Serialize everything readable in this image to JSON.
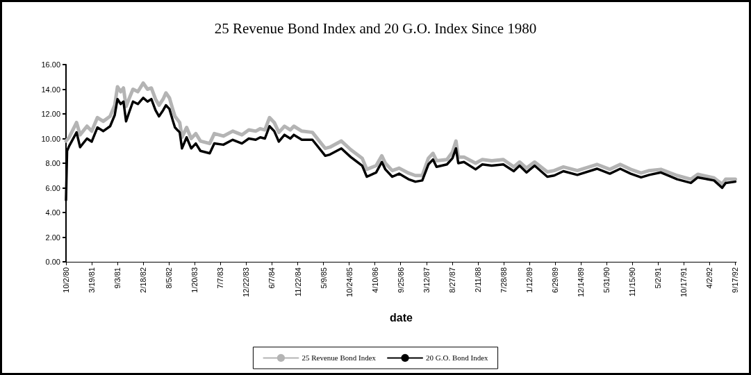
{
  "chart_data": {
    "type": "line",
    "title": "25 Revenue Bond Index and 20 G.O. Index Since 1980",
    "xlabel": "date",
    "xlim": [
      "1980-10-02",
      "1992-09-24"
    ],
    "xticks": [
      {
        "value": "1980-10-02",
        "label": "10/2/80"
      },
      {
        "value": "1981-03-19",
        "label": "3/19/81"
      },
      {
        "value": "1981-09-03",
        "label": "9/3/81"
      },
      {
        "value": "1982-02-18",
        "label": "2/18/82"
      },
      {
        "value": "1982-08-05",
        "label": "8/5/82"
      },
      {
        "value": "1983-01-20",
        "label": "1/20/83"
      },
      {
        "value": "1983-07-07",
        "label": "7/7/83"
      },
      {
        "value": "1983-12-22",
        "label": "12/22/83"
      },
      {
        "value": "1984-06-07",
        "label": "6/7/84"
      },
      {
        "value": "1984-11-22",
        "label": "11/22/84"
      },
      {
        "value": "1985-05-09",
        "label": "5/9/85"
      },
      {
        "value": "1985-10-24",
        "label": "10/24/85"
      },
      {
        "value": "1986-04-10",
        "label": "4/10/86"
      },
      {
        "value": "1986-09-25",
        "label": "9/25/86"
      },
      {
        "value": "1987-03-12",
        "label": "3/12/87"
      },
      {
        "value": "1987-08-27",
        "label": "8/27/87"
      },
      {
        "value": "1988-02-11",
        "label": "2/11/88"
      },
      {
        "value": "1988-07-28",
        "label": "7/28/88"
      },
      {
        "value": "1989-01-12",
        "label": "1/12/89"
      },
      {
        "value": "1989-06-29",
        "label": "6/29/89"
      },
      {
        "value": "1989-12-14",
        "label": "12/14/89"
      },
      {
        "value": "1990-05-31",
        "label": "5/31/90"
      },
      {
        "value": "1990-11-15",
        "label": "11/15/90"
      },
      {
        "value": "1991-05-02",
        "label": "5/2/91"
      },
      {
        "value": "1991-10-17",
        "label": "10/17/91"
      },
      {
        "value": "1992-04-02",
        "label": "4/2/92"
      },
      {
        "value": "1992-09-17",
        "label": "9/17/92"
      }
    ],
    "ylim": [
      0,
      16
    ],
    "yticks": [
      {
        "value": 0,
        "label": "0.00"
      },
      {
        "value": 2,
        "label": "2.00"
      },
      {
        "value": 4,
        "label": "4.00"
      },
      {
        "value": 6,
        "label": "6.00"
      },
      {
        "value": 8,
        "label": "8.00"
      },
      {
        "value": 10,
        "label": "10.00"
      },
      {
        "value": 12,
        "label": "12.00"
      },
      {
        "value": 14,
        "label": "14.00"
      },
      {
        "value": 16,
        "label": "16.00"
      }
    ],
    "grid": false,
    "legend": "bottom",
    "marker": "none",
    "line_style": "solid",
    "series": [
      {
        "name": "25 Revenue Bond Index",
        "color": "#b4b4b4",
        "x": [
          "1980-10-02",
          "1980-10-23",
          "1980-12-10",
          "1981-01-02",
          "1981-02-16",
          "1981-03-19",
          "1981-04-25",
          "1981-06-02",
          "1981-07-17",
          "1981-08-16",
          "1981-09-03",
          "1981-09-24",
          "1981-10-12",
          "1981-10-29",
          "1981-11-20",
          "1981-12-13",
          "1982-01-14",
          "1982-02-18",
          "1982-03-18",
          "1982-04-12",
          "1982-05-09",
          "1982-06-01",
          "1982-06-28",
          "1982-07-16",
          "1982-08-08",
          "1982-08-29",
          "1982-09-13",
          "1982-10-14",
          "1982-10-29",
          "1982-11-28",
          "1982-12-28",
          "1983-01-27",
          "1983-02-26",
          "1983-04-28",
          "1983-05-28",
          "1983-07-26",
          "1983-09-25",
          "1983-11-24",
          "1984-01-08",
          "1984-02-22",
          "1984-03-23",
          "1984-04-22",
          "1984-05-22",
          "1984-06-22",
          "1984-07-22",
          "1984-08-28",
          "1984-10-05",
          "1984-10-28",
          "1984-12-19",
          "1985-02-26",
          "1985-05-21",
          "1985-06-20",
          "1985-09-03",
          "1985-11-03",
          "1986-01-17",
          "1986-02-16",
          "1986-04-18",
          "1986-05-25",
          "1986-06-17",
          "1986-08-01",
          "1986-09-15",
          "1986-11-15",
          "1986-12-30",
          "1987-02-13",
          "1987-03-25",
          "1987-04-24",
          "1987-05-17",
          "1987-07-24",
          "1987-08-29",
          "1987-09-21",
          "1987-10-06",
          "1987-11-12",
          "1988-01-27",
          "1988-03-11",
          "1988-05-11",
          "1988-07-26",
          "1988-10-02",
          "1988-11-09",
          "1988-12-24",
          "1989-02-15",
          "1989-05-09",
          "1989-06-23",
          "1989-08-22",
          "1989-11-21",
          "1990-03-29",
          "1990-06-21",
          "1990-08-28",
          "1990-11-04",
          "1991-01-11",
          "1991-03-05",
          "1991-05-20",
          "1991-09-03",
          "1991-12-02",
          "1992-01-16",
          "1992-05-01",
          "1992-06-23",
          "1992-07-16",
          "1992-09-17"
        ],
        "values": [
          9.8,
          10.1,
          11.3,
          10.3,
          11.0,
          10.6,
          11.7,
          11.4,
          11.8,
          12.7,
          14.2,
          13.8,
          14.1,
          12.6,
          13.3,
          14.0,
          13.8,
          14.5,
          14.0,
          14.1,
          13.2,
          12.7,
          13.2,
          13.7,
          13.3,
          12.4,
          11.8,
          11.3,
          10.1,
          10.9,
          10.0,
          10.4,
          9.8,
          9.6,
          10.4,
          10.2,
          10.6,
          10.3,
          10.7,
          10.6,
          10.8,
          10.7,
          11.7,
          11.3,
          10.5,
          11.0,
          10.7,
          11.0,
          10.6,
          10.5,
          9.2,
          9.3,
          9.8,
          9.1,
          8.4,
          7.5,
          7.8,
          8.6,
          8.0,
          7.4,
          7.6,
          7.2,
          7.0,
          7.0,
          8.4,
          8.8,
          8.2,
          8.3,
          8.9,
          9.8,
          8.5,
          8.5,
          8.0,
          8.3,
          8.2,
          8.3,
          7.7,
          8.1,
          7.6,
          8.1,
          7.3,
          7.4,
          7.7,
          7.4,
          7.9,
          7.5,
          7.9,
          7.5,
          7.2,
          7.4,
          7.5,
          7.0,
          6.7,
          7.1,
          6.8,
          6.3,
          6.7,
          6.7
        ]
      },
      {
        "name": "20 G.O. Bond Index",
        "color": "#000000",
        "x": [
          "1980-10-02",
          "1980-10-09",
          "1980-10-23",
          "1980-12-10",
          "1981-01-02",
          "1981-02-16",
          "1981-03-19",
          "1981-04-25",
          "1981-06-02",
          "1981-07-17",
          "1981-08-16",
          "1981-09-03",
          "1981-09-24",
          "1981-10-12",
          "1981-10-29",
          "1981-11-20",
          "1981-12-13",
          "1982-01-14",
          "1982-02-18",
          "1982-03-18",
          "1982-04-12",
          "1982-05-09",
          "1982-06-01",
          "1982-06-28",
          "1982-07-16",
          "1982-08-08",
          "1982-08-29",
          "1982-09-13",
          "1982-10-14",
          "1982-10-29",
          "1982-11-28",
          "1982-12-28",
          "1983-01-27",
          "1983-02-26",
          "1983-04-28",
          "1983-05-28",
          "1983-07-26",
          "1983-09-25",
          "1983-11-24",
          "1984-01-08",
          "1984-02-22",
          "1984-03-23",
          "1984-04-22",
          "1984-05-22",
          "1984-06-22",
          "1984-07-22",
          "1984-08-28",
          "1984-10-05",
          "1984-10-28",
          "1984-12-19",
          "1985-02-26",
          "1985-05-21",
          "1985-06-20",
          "1985-09-03",
          "1985-11-03",
          "1986-01-17",
          "1986-02-16",
          "1986-04-18",
          "1986-05-25",
          "1986-06-17",
          "1986-08-01",
          "1986-09-15",
          "1986-11-15",
          "1986-12-30",
          "1987-02-13",
          "1987-03-25",
          "1987-04-24",
          "1987-05-17",
          "1987-07-24",
          "1987-08-29",
          "1987-09-21",
          "1987-10-06",
          "1987-11-12",
          "1988-01-27",
          "1988-03-11",
          "1988-05-11",
          "1988-07-26",
          "1988-10-02",
          "1988-11-09",
          "1988-12-24",
          "1989-02-15",
          "1989-05-09",
          "1989-06-23",
          "1989-08-22",
          "1989-11-21",
          "1990-03-29",
          "1990-06-21",
          "1990-08-28",
          "1990-11-04",
          "1991-01-11",
          "1991-03-05",
          "1991-05-20",
          "1991-09-03",
          "1991-12-02",
          "1992-01-16",
          "1992-05-01",
          "1992-06-23",
          "1992-07-16",
          "1992-09-17"
        ],
        "values": [
          5.0,
          9.0,
          9.4,
          10.5,
          9.3,
          10.0,
          9.75,
          10.9,
          10.6,
          11.0,
          11.9,
          13.2,
          12.8,
          13.0,
          11.4,
          12.2,
          13.0,
          12.8,
          13.3,
          13.0,
          13.2,
          12.3,
          11.8,
          12.3,
          12.7,
          12.4,
          11.5,
          10.9,
          10.5,
          9.2,
          10.1,
          9.2,
          9.6,
          9.0,
          8.8,
          9.6,
          9.5,
          9.9,
          9.6,
          10.0,
          9.9,
          10.1,
          10.0,
          11.0,
          10.6,
          9.75,
          10.3,
          10.0,
          10.3,
          9.9,
          9.9,
          8.6,
          8.7,
          9.2,
          8.5,
          7.8,
          6.9,
          7.25,
          8.1,
          7.5,
          6.9,
          7.15,
          6.7,
          6.5,
          6.6,
          7.9,
          8.3,
          7.7,
          7.9,
          8.4,
          9.2,
          8.0,
          8.1,
          7.5,
          7.9,
          7.8,
          7.9,
          7.35,
          7.8,
          7.25,
          7.8,
          6.9,
          7.0,
          7.35,
          7.05,
          7.55,
          7.15,
          7.55,
          7.15,
          6.85,
          7.05,
          7.25,
          6.7,
          6.4,
          6.85,
          6.6,
          6.0,
          6.4,
          6.5
        ]
      }
    ]
  }
}
